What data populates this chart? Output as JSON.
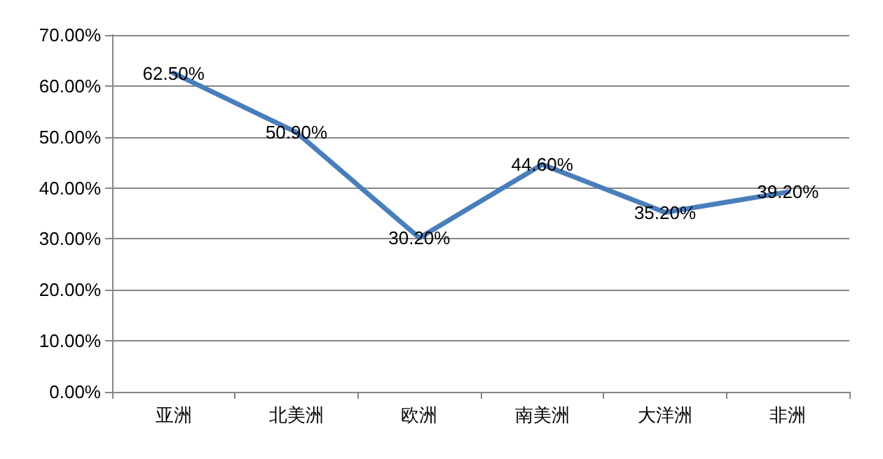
{
  "chart_data": {
    "type": "line",
    "categories": [
      "亚洲",
      "北美洲",
      "欧洲",
      "南美洲",
      "大洋洲",
      "非洲"
    ],
    "series": [
      {
        "color": "#4a7ebb",
        "values": [
          62.5,
          50.9,
          30.2,
          44.6,
          35.2,
          39.2
        ],
        "value_labels": [
          "62.50%",
          "50.90%",
          "30.20%",
          "44.60%",
          "35.20%",
          "39.20%"
        ]
      }
    ],
    "ylim": [
      0,
      70
    ],
    "yticks": [
      {
        "value": 0,
        "label": "0.00%"
      },
      {
        "value": 10,
        "label": "10.00%"
      },
      {
        "value": 20,
        "label": "20.00%"
      },
      {
        "value": 30,
        "label": "30.00%"
      },
      {
        "value": 40,
        "label": "40.00%"
      },
      {
        "value": 50,
        "label": "50.00%"
      },
      {
        "value": 60,
        "label": "60.00%"
      },
      {
        "value": 70,
        "label": "70.00%"
      }
    ],
    "grid": "y",
    "marker": "none",
    "line_style": "solid"
  }
}
